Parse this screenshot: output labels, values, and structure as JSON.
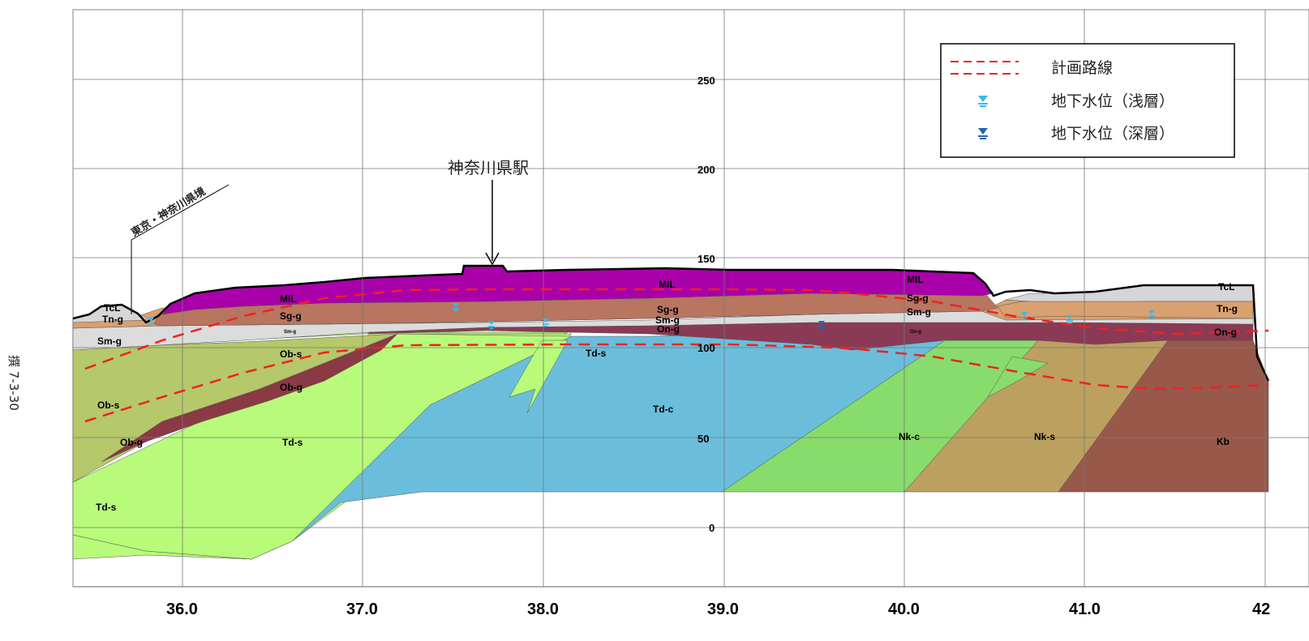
{
  "figure_number": "撰 7-3-30",
  "station_label": "神奈川県駅",
  "boundary_label": "東京・神奈川県境",
  "legend": {
    "items": [
      {
        "label": "計画路線",
        "icon": "dashed-line-icon",
        "color": "#ee2222"
      },
      {
        "label": "地下水位（浅層）",
        "icon": "water-level-marker-icon",
        "color": "#33bbee"
      },
      {
        "label": "地下水位（深層）",
        "icon": "water-level-marker-icon",
        "color": "#2266aa"
      }
    ]
  },
  "x_axis": {
    "ticks": [
      "36.0",
      "37.0",
      "38.0",
      "39.0",
      "40.0",
      "41.0",
      "42"
    ]
  },
  "y_axis": {
    "ticks": [
      "250",
      "200",
      "150",
      "100",
      "50",
      "0"
    ]
  },
  "colors": {
    "mil": "#aa00aa",
    "sg_g": "#b87560",
    "sm_g": "#dcdcdc",
    "on_g": "#8a3a55",
    "tn_g": "#d9a070",
    "tcl": "#d6d6d6",
    "ob_s": "#b5c86a",
    "ob_g": "#8a3a45",
    "td_s": "#b8fa7a",
    "td_c": "#6abedc",
    "nk_c": "#88dc6c",
    "nk_s": "#bca060",
    "kb": "#98584a",
    "route": "#ee2222"
  },
  "unit_labels": [
    {
      "id": "mil-1",
      "text": "MIL"
    },
    {
      "id": "mil-2",
      "text": "MIL"
    },
    {
      "id": "mil-3",
      "text": "MIL"
    },
    {
      "id": "tcl-1",
      "text": "TcL"
    },
    {
      "id": "tcl-2",
      "text": "TcL"
    },
    {
      "id": "tn-g-1",
      "text": "Tn-g"
    },
    {
      "id": "tn-g-2",
      "text": "Tn-g"
    },
    {
      "id": "sg-g-1",
      "text": "Sg-g"
    },
    {
      "id": "sg-g-2",
      "text": "Sg-g"
    },
    {
      "id": "sg-g-3",
      "text": "Sg-g"
    },
    {
      "id": "sm-g-1",
      "text": "Sm-g"
    },
    {
      "id": "sm-g-2",
      "text": "Sm-g"
    },
    {
      "id": "sm-g-3",
      "text": "Sm-g"
    },
    {
      "id": "on-g-1",
      "text": "On-g"
    },
    {
      "id": "on-g-2",
      "text": "On-g"
    },
    {
      "id": "ob-s-1",
      "text": "Ob-s"
    },
    {
      "id": "ob-s-2",
      "text": "Ob-s"
    },
    {
      "id": "ob-g-1",
      "text": "Ob-g"
    },
    {
      "id": "ob-g-2",
      "text": "Ob-g"
    },
    {
      "id": "td-s-1",
      "text": "Td-s"
    },
    {
      "id": "td-s-2",
      "text": "Td-s"
    },
    {
      "id": "td-s-3",
      "text": "Td-s"
    },
    {
      "id": "td-c-1",
      "text": "Td-c"
    },
    {
      "id": "nk-c-1",
      "text": "Nk-c"
    },
    {
      "id": "nk-s-1",
      "text": "Nk-s"
    },
    {
      "id": "kb-1",
      "text": "Kb"
    }
  ],
  "small_labels": [
    {
      "id": "sm-small-1",
      "text": "Sm-g"
    },
    {
      "id": "on-small-1",
      "text": "On-g"
    }
  ]
}
